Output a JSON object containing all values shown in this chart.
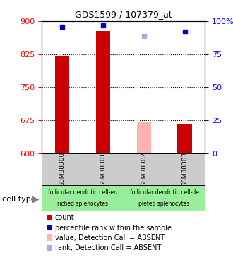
{
  "title": "GDS1599 / 107379_at",
  "samples": [
    "GSM38300",
    "GSM38301",
    "GSM38302",
    "GSM38303"
  ],
  "bar_values": [
    820,
    878,
    672,
    667
  ],
  "bar_colors": [
    "#cc0000",
    "#cc0000",
    "#ffb3b3",
    "#cc0000"
  ],
  "rank_values": [
    96,
    97,
    89,
    92
  ],
  "rank_colors": [
    "#0000cc",
    "#0000cc",
    "#aaaadd",
    "#0000cc"
  ],
  "ymin": 600,
  "ymax": 900,
  "yticks": [
    600,
    675,
    750,
    825,
    900
  ],
  "right_yticks": [
    0,
    25,
    50,
    75,
    100
  ],
  "right_ylabels": [
    "0",
    "25",
    "50",
    "75",
    "100%"
  ],
  "bar_width": 0.35,
  "group1_samples": [
    0,
    1
  ],
  "group2_samples": [
    2,
    3
  ],
  "group1_label_line1": "follicular dendritic cell-en",
  "group1_label_line2": "riched splenocytes",
  "group2_label_line1": "follicular dendritic cell-de",
  "group2_label_line2": "pleted splenocytes",
  "cell_type_label": "cell type",
  "legend_items": [
    {
      "color": "#cc0000",
      "label": "count"
    },
    {
      "color": "#0000cc",
      "label": "percentile rank within the sample"
    },
    {
      "color": "#ffb3b3",
      "label": "value, Detection Call = ABSENT"
    },
    {
      "color": "#aaaadd",
      "label": "rank, Detection Call = ABSENT"
    }
  ]
}
